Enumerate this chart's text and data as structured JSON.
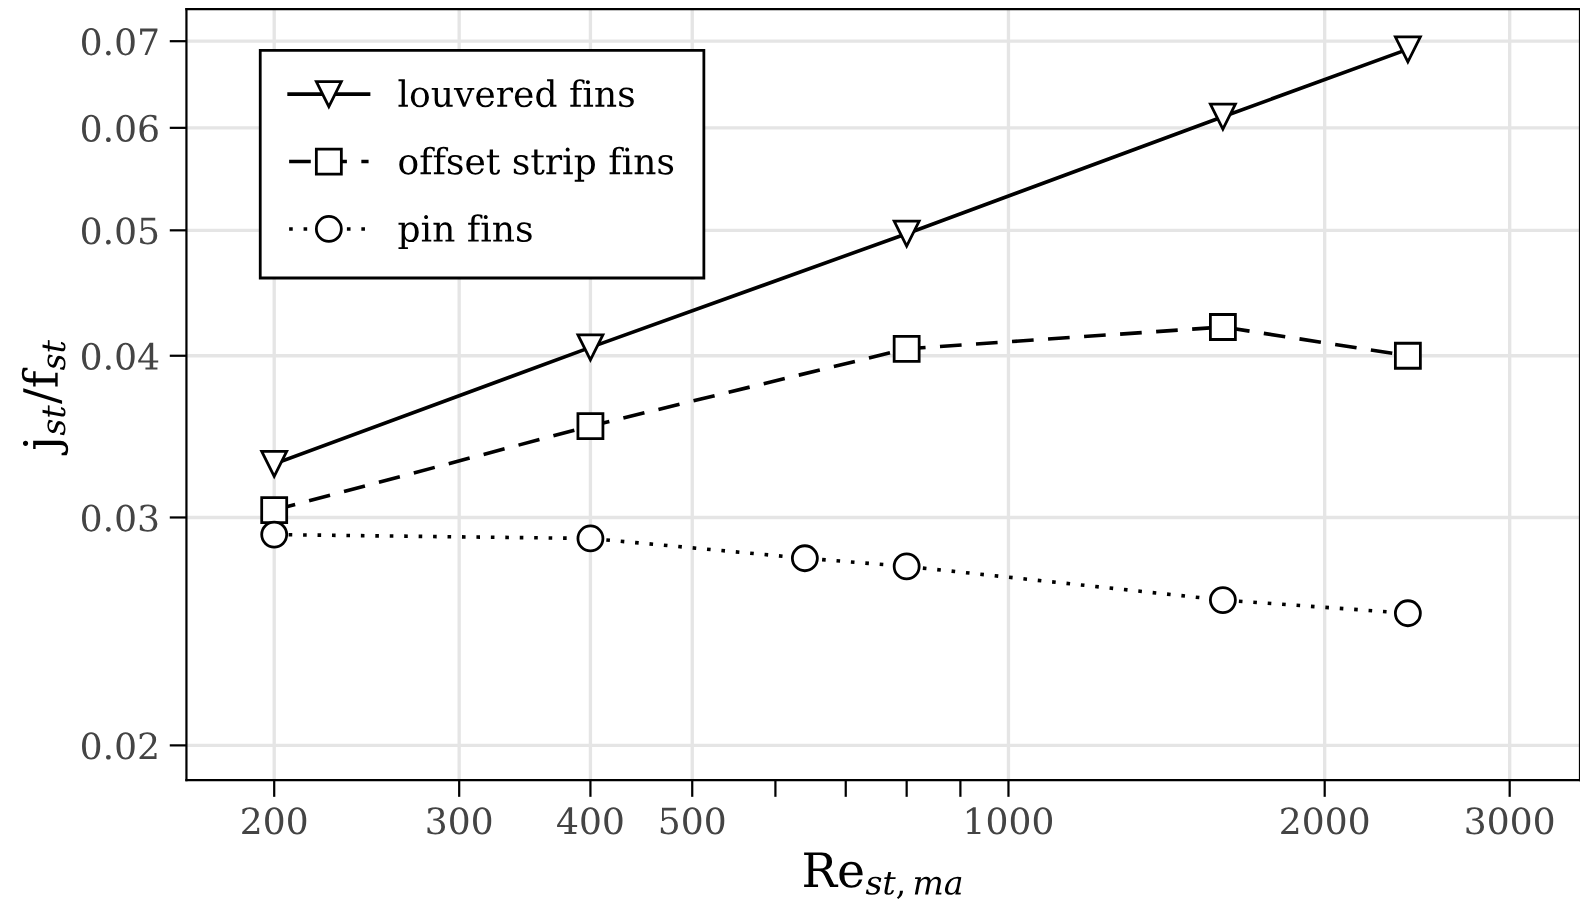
{
  "chart_data": {
    "type": "line",
    "xlabel": "Re$_{st,ma}$",
    "ylabel": "j$_{st}$/f$_{st}$",
    "log": "xy",
    "grid": true,
    "legend": "top left",
    "xlim": [
      165,
      3500
    ],
    "ylim": [
      0.0188,
      0.0741
    ],
    "xticks": [
      200,
      300,
      400,
      500,
      {
        "value": 600,
        "label": null
      },
      {
        "value": 700,
        "label": null
      },
      {
        "value": 800,
        "label": null
      },
      {
        "value": 900,
        "label": null
      },
      1000,
      2000,
      3000
    ],
    "yticks": [
      0.02,
      0.03,
      0.04,
      0.05,
      0.06,
      0.07
    ],
    "series": [
      {
        "name": "louvered fins",
        "color": "#000000",
        "marker": "triangle",
        "line_style": "solid",
        "x": [
          200,
          400,
          800,
          1600,
          2400
        ],
        "values": [
          0.033,
          0.0406,
          0.0497,
          0.0612,
          0.069
        ]
      },
      {
        "name": "offset strip fins",
        "color": "#000000",
        "marker": "square",
        "line_style": "dashed",
        "x": [
          200,
          400,
          800,
          1600,
          2400
        ],
        "values": [
          0.0304,
          0.0353,
          0.0405,
          0.0421,
          0.04
        ]
      },
      {
        "name": "pin fins",
        "color": "#000000",
        "marker": "circle",
        "line_style": "dotted",
        "x": [
          200,
          400,
          640,
          800,
          1600,
          2400
        ],
        "values": [
          0.0291,
          0.0289,
          0.0279,
          0.0275,
          0.0259,
          0.0253
        ]
      }
    ]
  }
}
